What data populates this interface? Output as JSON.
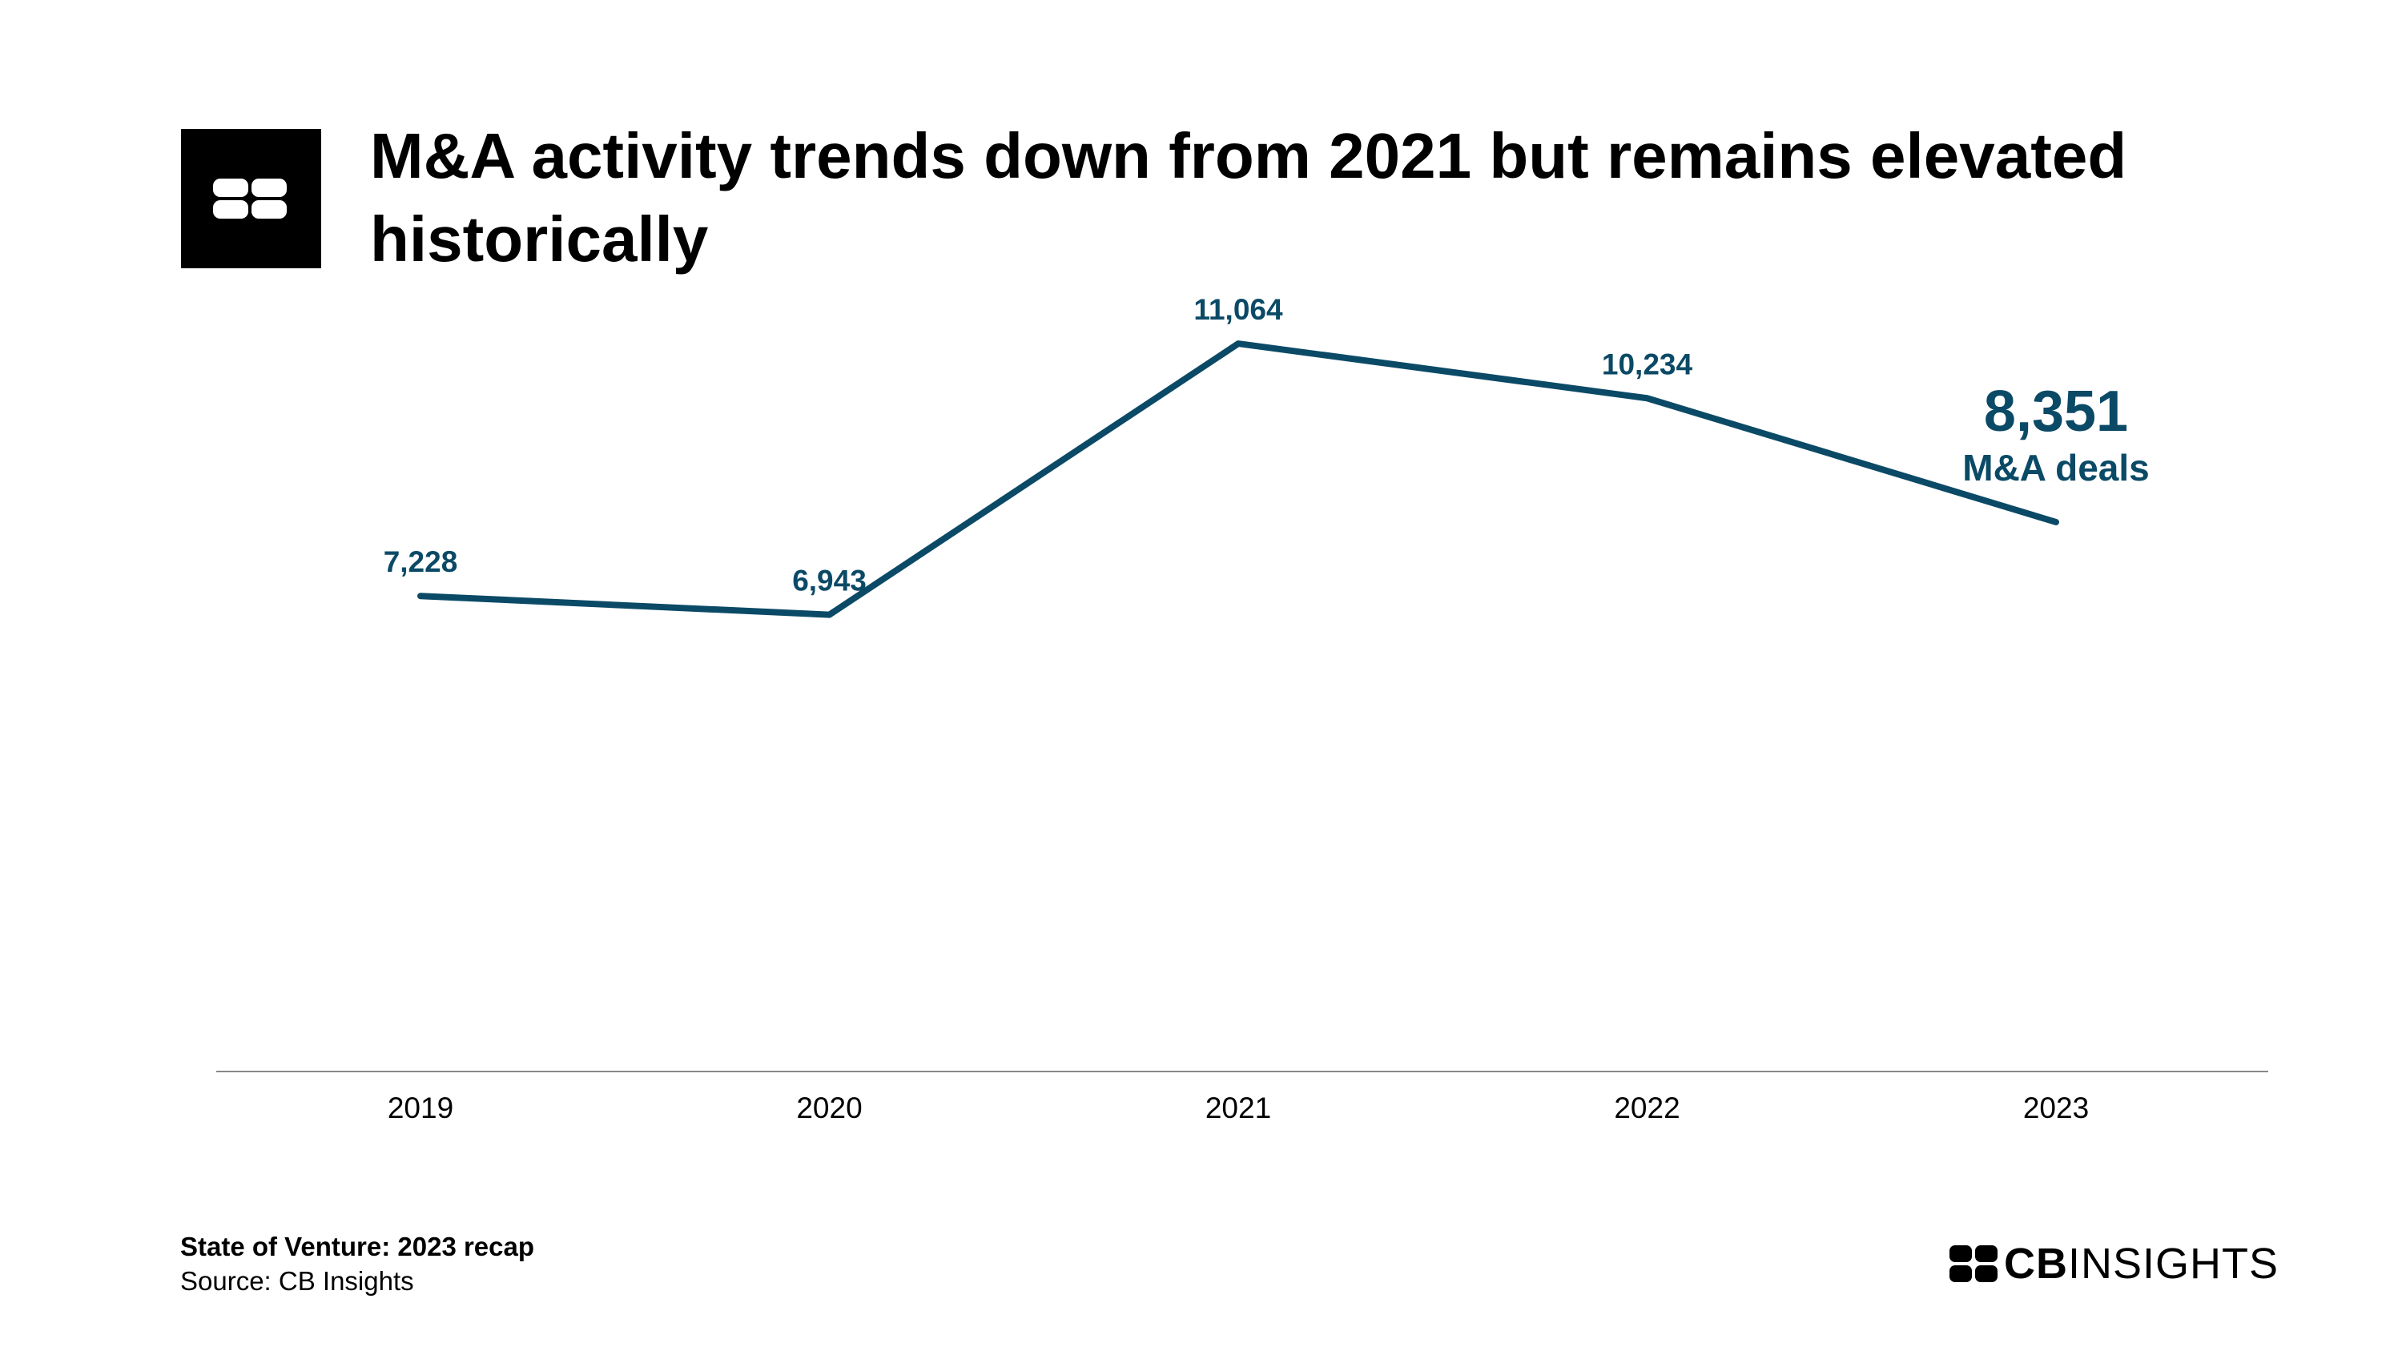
{
  "header": {
    "title": "M&A activity trends down from 2021 but remains elevated historically"
  },
  "footer": {
    "report": "State of Venture: 2023 recap",
    "source": "Source: CB Insights"
  },
  "brand": {
    "bold": "CB",
    "rest": "INSIGHTS",
    "logo_icon": "cb-insights-logo-icon"
  },
  "colors": {
    "line": "#0b4a66",
    "axis": "#888888",
    "text": "#000000"
  },
  "chart_data": {
    "type": "line",
    "title": "M&A activity trends down from 2021 but remains elevated historically",
    "xlabel": "",
    "ylabel": "",
    "categories": [
      "2019",
      "2020",
      "2021",
      "2022",
      "2023"
    ],
    "series": [
      {
        "values": [
          7228,
          6943,
          11064,
          10234,
          8351
        ]
      }
    ],
    "data_labels": [
      "7,228",
      "6,943",
      "11,064",
      "10,234",
      "8,351"
    ],
    "highlight": {
      "value": "8,351",
      "label": "M&A deals"
    },
    "ylim": [
      0,
      15800
    ],
    "grid": false,
    "legend": "none"
  }
}
